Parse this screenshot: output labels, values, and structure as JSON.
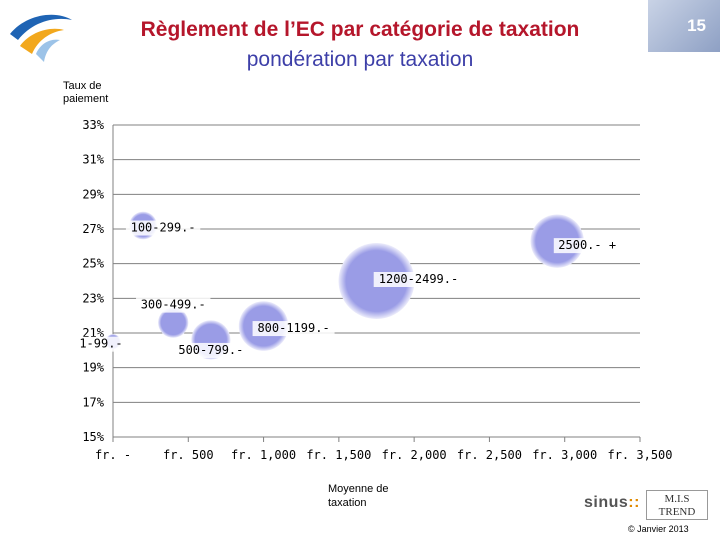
{
  "slide": {
    "title_line1": "Règlement de l’EC par catégorie de taxation",
    "title_line2": "pondération par taxation",
    "slide_number": "15",
    "copyright": "© Janvier 2013",
    "logo_sinus_text": "sinus",
    "logo_sinus_suffix": "::",
    "logo_mistrend_line1": "M.I.S",
    "logo_mistrend_line2": "TREND"
  },
  "colors": {
    "bubble_fill": "#9a9ce6",
    "bubble_highlight": "#ededfb",
    "title_primary": "#b5162b",
    "title_secondary": "#3d3fa8",
    "grid": "#808080"
  },
  "chart_data": {
    "type": "bubble",
    "ylabel": "Taux de paiement",
    "xlabel": "Moyenne de taxation",
    "xlim": [
      0,
      3500
    ],
    "ylim": [
      15,
      33
    ],
    "x_ticks": [
      0,
      500,
      1000,
      1500,
      2000,
      2500,
      3000,
      3500
    ],
    "x_tick_labels": [
      "fr. -",
      "fr. 500",
      "fr. 1,000",
      "fr. 1,500",
      "fr. 2,000",
      "fr. 2,500",
      "fr. 3,000",
      "fr. 3,500"
    ],
    "y_ticks": [
      15,
      17,
      19,
      21,
      23,
      25,
      27,
      29,
      31,
      33
    ],
    "y_tick_labels": [
      "15%",
      "17%",
      "19%",
      "21%",
      "23%",
      "25%",
      "27%",
      "29%",
      "31%",
      "33%"
    ],
    "grid": true,
    "bubbles": [
      {
        "label": "1-99.-",
        "x": 0,
        "y": 20.5,
        "size": 0.3
      },
      {
        "label": "100-299.-",
        "x": 200,
        "y": 27.2,
        "size": 1
      },
      {
        "label": "300-499.-",
        "x": 400,
        "y": 21.6,
        "size": 1.2
      },
      {
        "label": "500-799.-",
        "x": 650,
        "y": 20.6,
        "size": 2
      },
      {
        "label": "800-1199.-",
        "x": 1000,
        "y": 21.4,
        "size": 3.2
      },
      {
        "label": "1200-2499.-",
        "x": 1750,
        "y": 24.0,
        "size": 7.5
      },
      {
        "label": "2500.- +",
        "x": 2950,
        "y": 26.3,
        "size": 3.7
      }
    ]
  }
}
